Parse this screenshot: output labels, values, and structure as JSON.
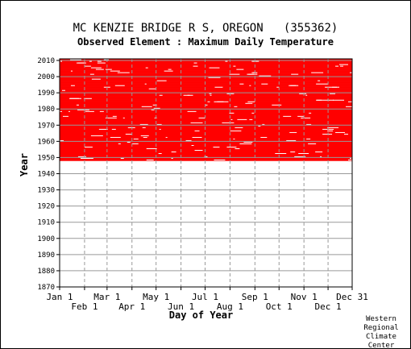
{
  "title": "MC KENZIE BRIDGE R S, OREGON   (355362)",
  "subtitle": "Observed Element : Maximum Daily Temperature",
  "credit": [
    "Western",
    "Regional",
    "Climate",
    "Center"
  ],
  "chart_data": {
    "type": "heatmap",
    "description_of_marks": "data availability: red cells mark days with observations",
    "xlabel": "Day of Year",
    "ylabel": "Year",
    "xlim": [
      1,
      365
    ],
    "ylim": [
      1870,
      2011
    ],
    "x_ticks_top_row": [
      {
        "label": "Jan 1",
        "day": 1
      },
      {
        "label": "Mar 1",
        "day": 60
      },
      {
        "label": "May 1",
        "day": 121
      },
      {
        "label": "Jul 1",
        "day": 182
      },
      {
        "label": "Sep 1",
        "day": 244
      },
      {
        "label": "Nov 1",
        "day": 305
      },
      {
        "label": "Dec 31",
        "day": 365
      }
    ],
    "x_ticks_bottom_row": [
      {
        "label": "Feb 1",
        "day": 32
      },
      {
        "label": "Apr 1",
        "day": 91
      },
      {
        "label": "Jun 1",
        "day": 152
      },
      {
        "label": "Aug 1",
        "day": 213
      },
      {
        "label": "Oct 1",
        "day": 274
      },
      {
        "label": "Dec 1",
        "day": 335
      }
    ],
    "y_ticks": [
      1870,
      1880,
      1890,
      1900,
      1910,
      1920,
      1930,
      1940,
      1950,
      1960,
      1970,
      1980,
      1990,
      2000,
      2010
    ],
    "record_start_year": 1948,
    "record_end_year": 2010,
    "grid": true,
    "data_color": "#ff0000",
    "grid_color": "#999999"
  }
}
